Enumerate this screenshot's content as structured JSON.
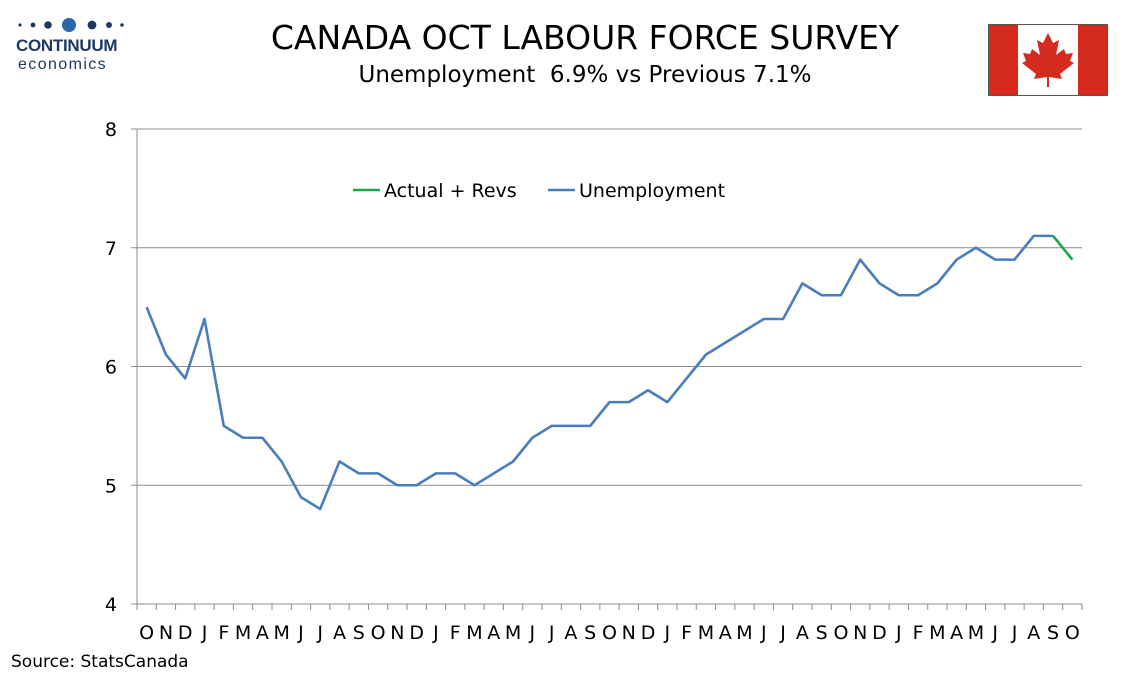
{
  "brand": {
    "name": "CONTINUUM",
    "sub": "economics",
    "color": "#1d3a63"
  },
  "title": "CANADA OCT LABOUR FORCE SURVEY",
  "subtitle": "Unemployment  6.9% vs Previous 7.1%",
  "source": "Source: StatsCanada",
  "flag": {
    "icon": "canada-flag-icon",
    "red": "#d52b1e"
  },
  "chart_data": {
    "type": "line",
    "ylim": [
      4,
      8
    ],
    "yticks": [
      "4",
      "5",
      "6",
      "7",
      "8"
    ],
    "grid": true,
    "legend_position": "top-center",
    "x": [
      "O",
      "N",
      "D",
      "J",
      "F",
      "M",
      "A",
      "M",
      "J",
      "J",
      "A",
      "S",
      "O",
      "N",
      "D",
      "J",
      "F",
      "M",
      "A",
      "M",
      "J",
      "J",
      "A",
      "S",
      "O",
      "N",
      "D",
      "J",
      "F",
      "M",
      "A",
      "M",
      "J",
      "J",
      "A",
      "S",
      "O",
      "N",
      "D",
      "J",
      "F",
      "M",
      "A",
      "M",
      "J",
      "J",
      "A",
      "S",
      "O"
    ],
    "series": [
      {
        "name": "Unemployment",
        "color": "#4a7ebb",
        "values": [
          6.5,
          6.1,
          5.9,
          6.4,
          5.5,
          5.4,
          5.4,
          5.2,
          4.9,
          4.8,
          5.2,
          5.1,
          5.1,
          5.0,
          5.0,
          5.1,
          5.1,
          5.0,
          5.1,
          5.2,
          5.4,
          5.5,
          5.5,
          5.5,
          5.7,
          5.7,
          5.8,
          5.7,
          5.9,
          6.1,
          6.2,
          6.3,
          6.4,
          6.4,
          6.7,
          6.6,
          6.6,
          6.9,
          6.7,
          6.6,
          6.6,
          6.7,
          6.9,
          7.0,
          6.9,
          6.9,
          7.1,
          7.1,
          null
        ]
      },
      {
        "name": "Actual + Revs",
        "color": "#1aa84b",
        "values": [
          null,
          null,
          null,
          null,
          null,
          null,
          null,
          null,
          null,
          null,
          null,
          null,
          null,
          null,
          null,
          null,
          null,
          null,
          null,
          null,
          null,
          null,
          null,
          null,
          null,
          null,
          null,
          null,
          null,
          null,
          null,
          null,
          null,
          null,
          null,
          null,
          null,
          null,
          null,
          null,
          null,
          null,
          null,
          null,
          null,
          null,
          null,
          7.1,
          6.9
        ]
      }
    ]
  }
}
